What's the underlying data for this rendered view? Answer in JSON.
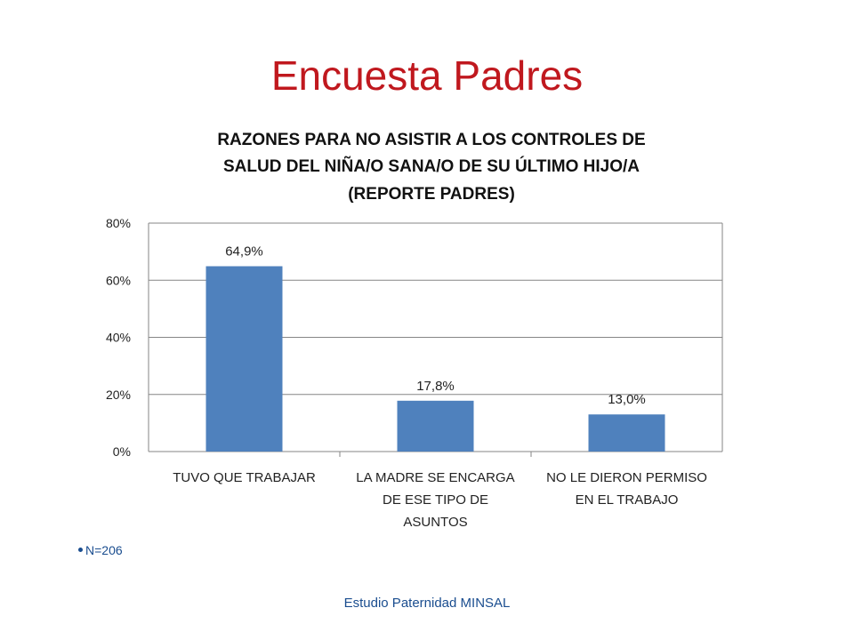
{
  "slide": {
    "title": "Encuesta Padres",
    "note": "N=206",
    "footer": "Estudio Paternidad MINSAL"
  },
  "chart_data": {
    "type": "bar",
    "title_lines": [
      "RAZONES PARA NO ASISTIR A LOS CONTROLES DE",
      "SALUD DEL NIÑA/O SANA/O DE SU ÚLTIMO HIJO/A",
      "(REPORTE PADRES)"
    ],
    "categories": [
      [
        "TUVO QUE TRABAJAR"
      ],
      [
        "LA MADRE SE ENCARGA",
        "DE ESE TIPO DE",
        "ASUNTOS"
      ],
      [
        "NO LE DIERON PERMISO",
        "EN EL TRABAJO"
      ]
    ],
    "values": [
      64.9,
      17.8,
      13.0
    ],
    "data_labels": [
      "64,9%",
      "17,8%",
      "13,0%"
    ],
    "ylim": [
      0,
      80
    ],
    "yticks": [
      0,
      20,
      40,
      60,
      80
    ],
    "ytick_labels": [
      "0%",
      "20%",
      "40%",
      "60%",
      "80%"
    ],
    "grid": true,
    "legend": "none",
    "bar_color": "#4f81bd",
    "gridline_color": "#868686"
  },
  "colors": {
    "title": "#c0181e",
    "text": "#1a4d8f"
  }
}
